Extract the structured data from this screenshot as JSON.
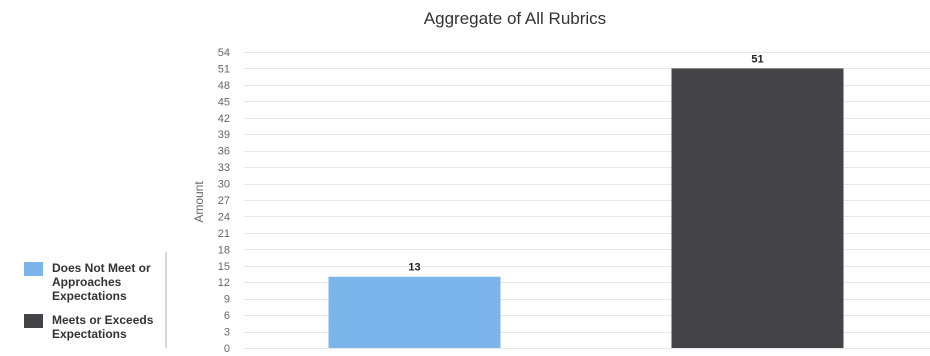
{
  "chart_data": {
    "type": "bar",
    "title": "Aggregate of All Rubrics",
    "xlabel": "",
    "ylabel": "Amount",
    "ylim": [
      0,
      54
    ],
    "yticks": [
      0,
      3,
      6,
      9,
      12,
      15,
      18,
      21,
      24,
      27,
      30,
      33,
      36,
      39,
      42,
      45,
      48,
      51,
      54
    ],
    "grid": true,
    "legend_position": "bottom-left",
    "categories": [
      "Does Not Meet or Approaches Expectations",
      "Meets or Exceeds Expectations"
    ],
    "values": [
      13,
      51
    ],
    "data_labels": [
      "13",
      "51"
    ],
    "colors": [
      "#7cb5ec",
      "#434348"
    ]
  },
  "legend": {
    "items": [
      {
        "label": "Does Not Meet or Approaches Expectations",
        "color": "#7cb5ec"
      },
      {
        "label": "Meets or Exceeds Expectations",
        "color": "#434348"
      }
    ]
  }
}
